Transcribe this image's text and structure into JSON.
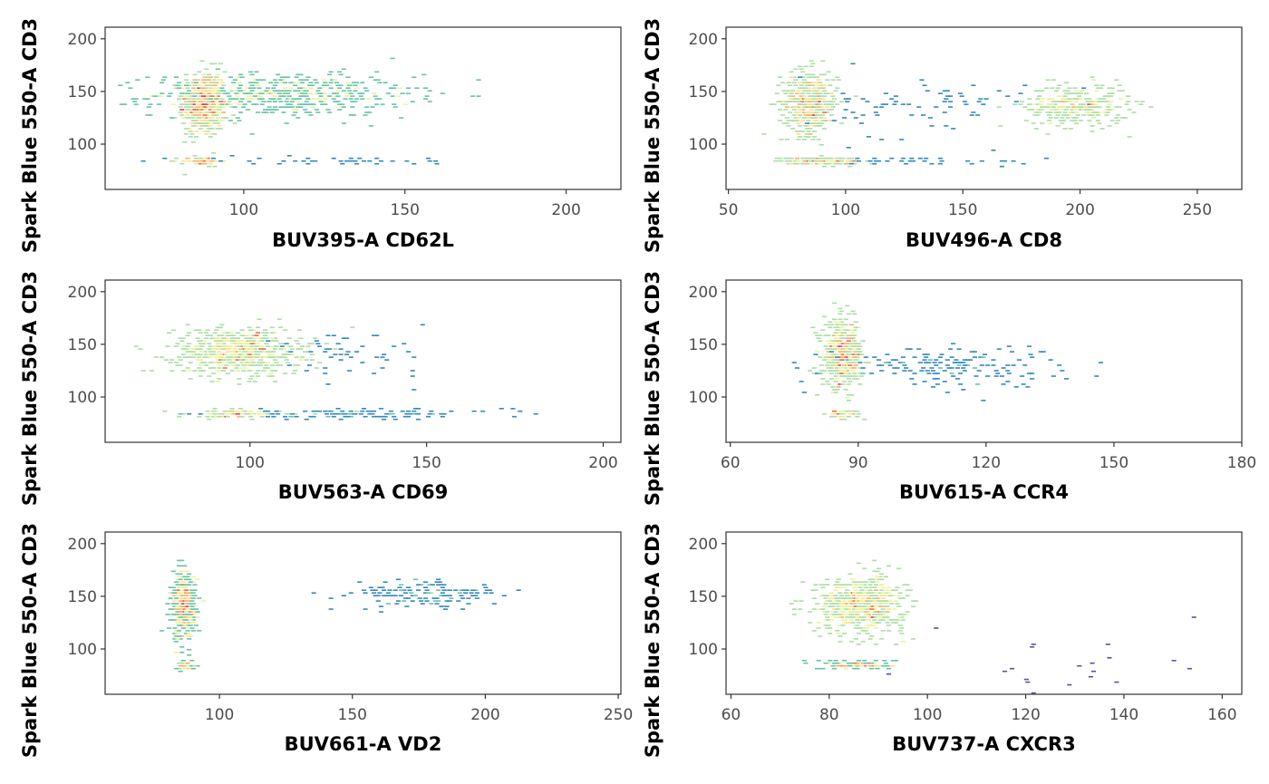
{
  "chart_data": [
    {
      "type": "scatter",
      "xlabel": "BUV395-A CD62L",
      "ylabel": "Spark Blue 550-A CD3",
      "xlim": [
        57,
        217
      ],
      "ylim": [
        57,
        211
      ],
      "xticks": [
        "100",
        "150",
        "200"
      ],
      "yticks": [
        "100",
        "150",
        "200"
      ],
      "clusters": [
        {
          "cx": 87,
          "cy": 138,
          "sx": 3.5,
          "sy": 16,
          "n": 420,
          "w": 1.0
        },
        {
          "cx": 112,
          "cy": 147,
          "sx": 20,
          "sy": 10,
          "n": 520,
          "w": 0.6
        },
        {
          "cx": 86,
          "cy": 84,
          "sx": 3,
          "sy": 2.2,
          "n": 60,
          "w": 0.9
        },
        {
          "cx": 125,
          "cy": 84,
          "sx": 25,
          "sy": 2,
          "n": 45,
          "w": 0.15
        }
      ]
    },
    {
      "type": "scatter",
      "xlabel": "BUV496-A CD8",
      "ylabel": "Spark Blue 550-A CD3",
      "xlim": [
        49,
        269
      ],
      "ylim": [
        57,
        211
      ],
      "xticks": [
        "50",
        "100",
        "150",
        "200",
        "250"
      ],
      "yticks": [
        "100",
        "150",
        "200"
      ],
      "clusters": [
        {
          "cx": 84,
          "cy": 140,
          "sx": 6,
          "sy": 15,
          "n": 380,
          "w": 1.0
        },
        {
          "cx": 198,
          "cy": 137,
          "sx": 11,
          "sy": 10,
          "n": 300,
          "w": 0.8
        },
        {
          "cx": 88,
          "cy": 84,
          "sx": 9,
          "sy": 2,
          "n": 120,
          "w": 0.9
        },
        {
          "cx": 130,
          "cy": 135,
          "sx": 25,
          "sy": 15,
          "n": 90,
          "w": 0.15
        },
        {
          "cx": 135,
          "cy": 84,
          "sx": 25,
          "sy": 2,
          "n": 40,
          "w": 0.12
        }
      ]
    },
    {
      "type": "scatter",
      "xlabel": "BUV563-A CD69",
      "ylabel": "Spark Blue 550-A CD3",
      "xlim": [
        59,
        205
      ],
      "ylim": [
        57,
        211
      ],
      "xticks": [
        "100",
        "150",
        "200"
      ],
      "yticks": [
        "100",
        "150",
        "200"
      ],
      "clusters": [
        {
          "cx": 96,
          "cy": 143,
          "sx": 9,
          "sy": 11,
          "n": 620,
          "w": 1.0
        },
        {
          "cx": 95,
          "cy": 84,
          "sx": 7,
          "sy": 2,
          "n": 110,
          "w": 0.9
        },
        {
          "cx": 128,
          "cy": 84,
          "sx": 22,
          "sy": 2,
          "n": 130,
          "w": 0.35
        },
        {
          "cx": 125,
          "cy": 140,
          "sx": 13,
          "sy": 10,
          "n": 60,
          "w": 0.15
        }
      ]
    },
    {
      "type": "scatter",
      "xlabel": "BUV615-A CCR4",
      "ylabel": "Spark Blue 550-A CD3",
      "xlim": [
        59,
        180
      ],
      "ylim": [
        57,
        211
      ],
      "xticks": [
        "60",
        "90",
        "120",
        "150",
        "180"
      ],
      "yticks": [
        "100",
        "150",
        "200"
      ],
      "clusters": [
        {
          "cx": 86,
          "cy": 140,
          "sx": 2.3,
          "sy": 16,
          "n": 420,
          "w": 1.0
        },
        {
          "cx": 86,
          "cy": 84,
          "sx": 2,
          "sy": 2,
          "n": 50,
          "w": 0.9
        },
        {
          "cx": 110,
          "cy": 130,
          "sx": 14,
          "sy": 10,
          "n": 170,
          "w": 0.2
        }
      ]
    },
    {
      "type": "scatter",
      "xlabel": "BUV661-A VD2",
      "ylabel": "Spark Blue 550-A CD3",
      "xlim": [
        57,
        251
      ],
      "ylim": [
        57,
        211
      ],
      "xticks": [
        "100",
        "150",
        "200",
        "250"
      ],
      "yticks": [
        "100",
        "150",
        "200"
      ],
      "clusters": [
        {
          "cx": 86,
          "cy": 140,
          "sx": 2.2,
          "sy": 16,
          "n": 420,
          "w": 1.0
        },
        {
          "cx": 87,
          "cy": 84,
          "sx": 2,
          "sy": 2,
          "n": 50,
          "w": 0.9
        },
        {
          "cx": 178,
          "cy": 152,
          "sx": 14,
          "sy": 7,
          "n": 150,
          "w": 0.3
        }
      ]
    },
    {
      "type": "scatter",
      "xlabel": "BUV737-A CXCR3",
      "ylabel": "Spark Blue 550-A CD3",
      "xlim": [
        59,
        164
      ],
      "ylim": [
        57,
        211
      ],
      "xticks": [
        "60",
        "80",
        "100",
        "120",
        "140",
        "160"
      ],
      "yticks": [
        "100",
        "150",
        "200"
      ],
      "clusters": [
        {
          "cx": 86,
          "cy": 142,
          "sx": 4.5,
          "sy": 13,
          "n": 620,
          "w": 1.0
        },
        {
          "cx": 86,
          "cy": 85,
          "sx": 3.5,
          "sy": 2,
          "n": 120,
          "w": 0.9
        },
        {
          "cx": 130,
          "cy": 90,
          "sx": 14,
          "sy": 25,
          "n": 20,
          "w": 0.1
        }
      ]
    }
  ],
  "palette": [
    "#5e4fa2",
    "#3288bd",
    "#66c2a5",
    "#abdda4",
    "#e6f598",
    "#fee08b",
    "#fdae61",
    "#f46d43",
    "#d53e4f"
  ]
}
